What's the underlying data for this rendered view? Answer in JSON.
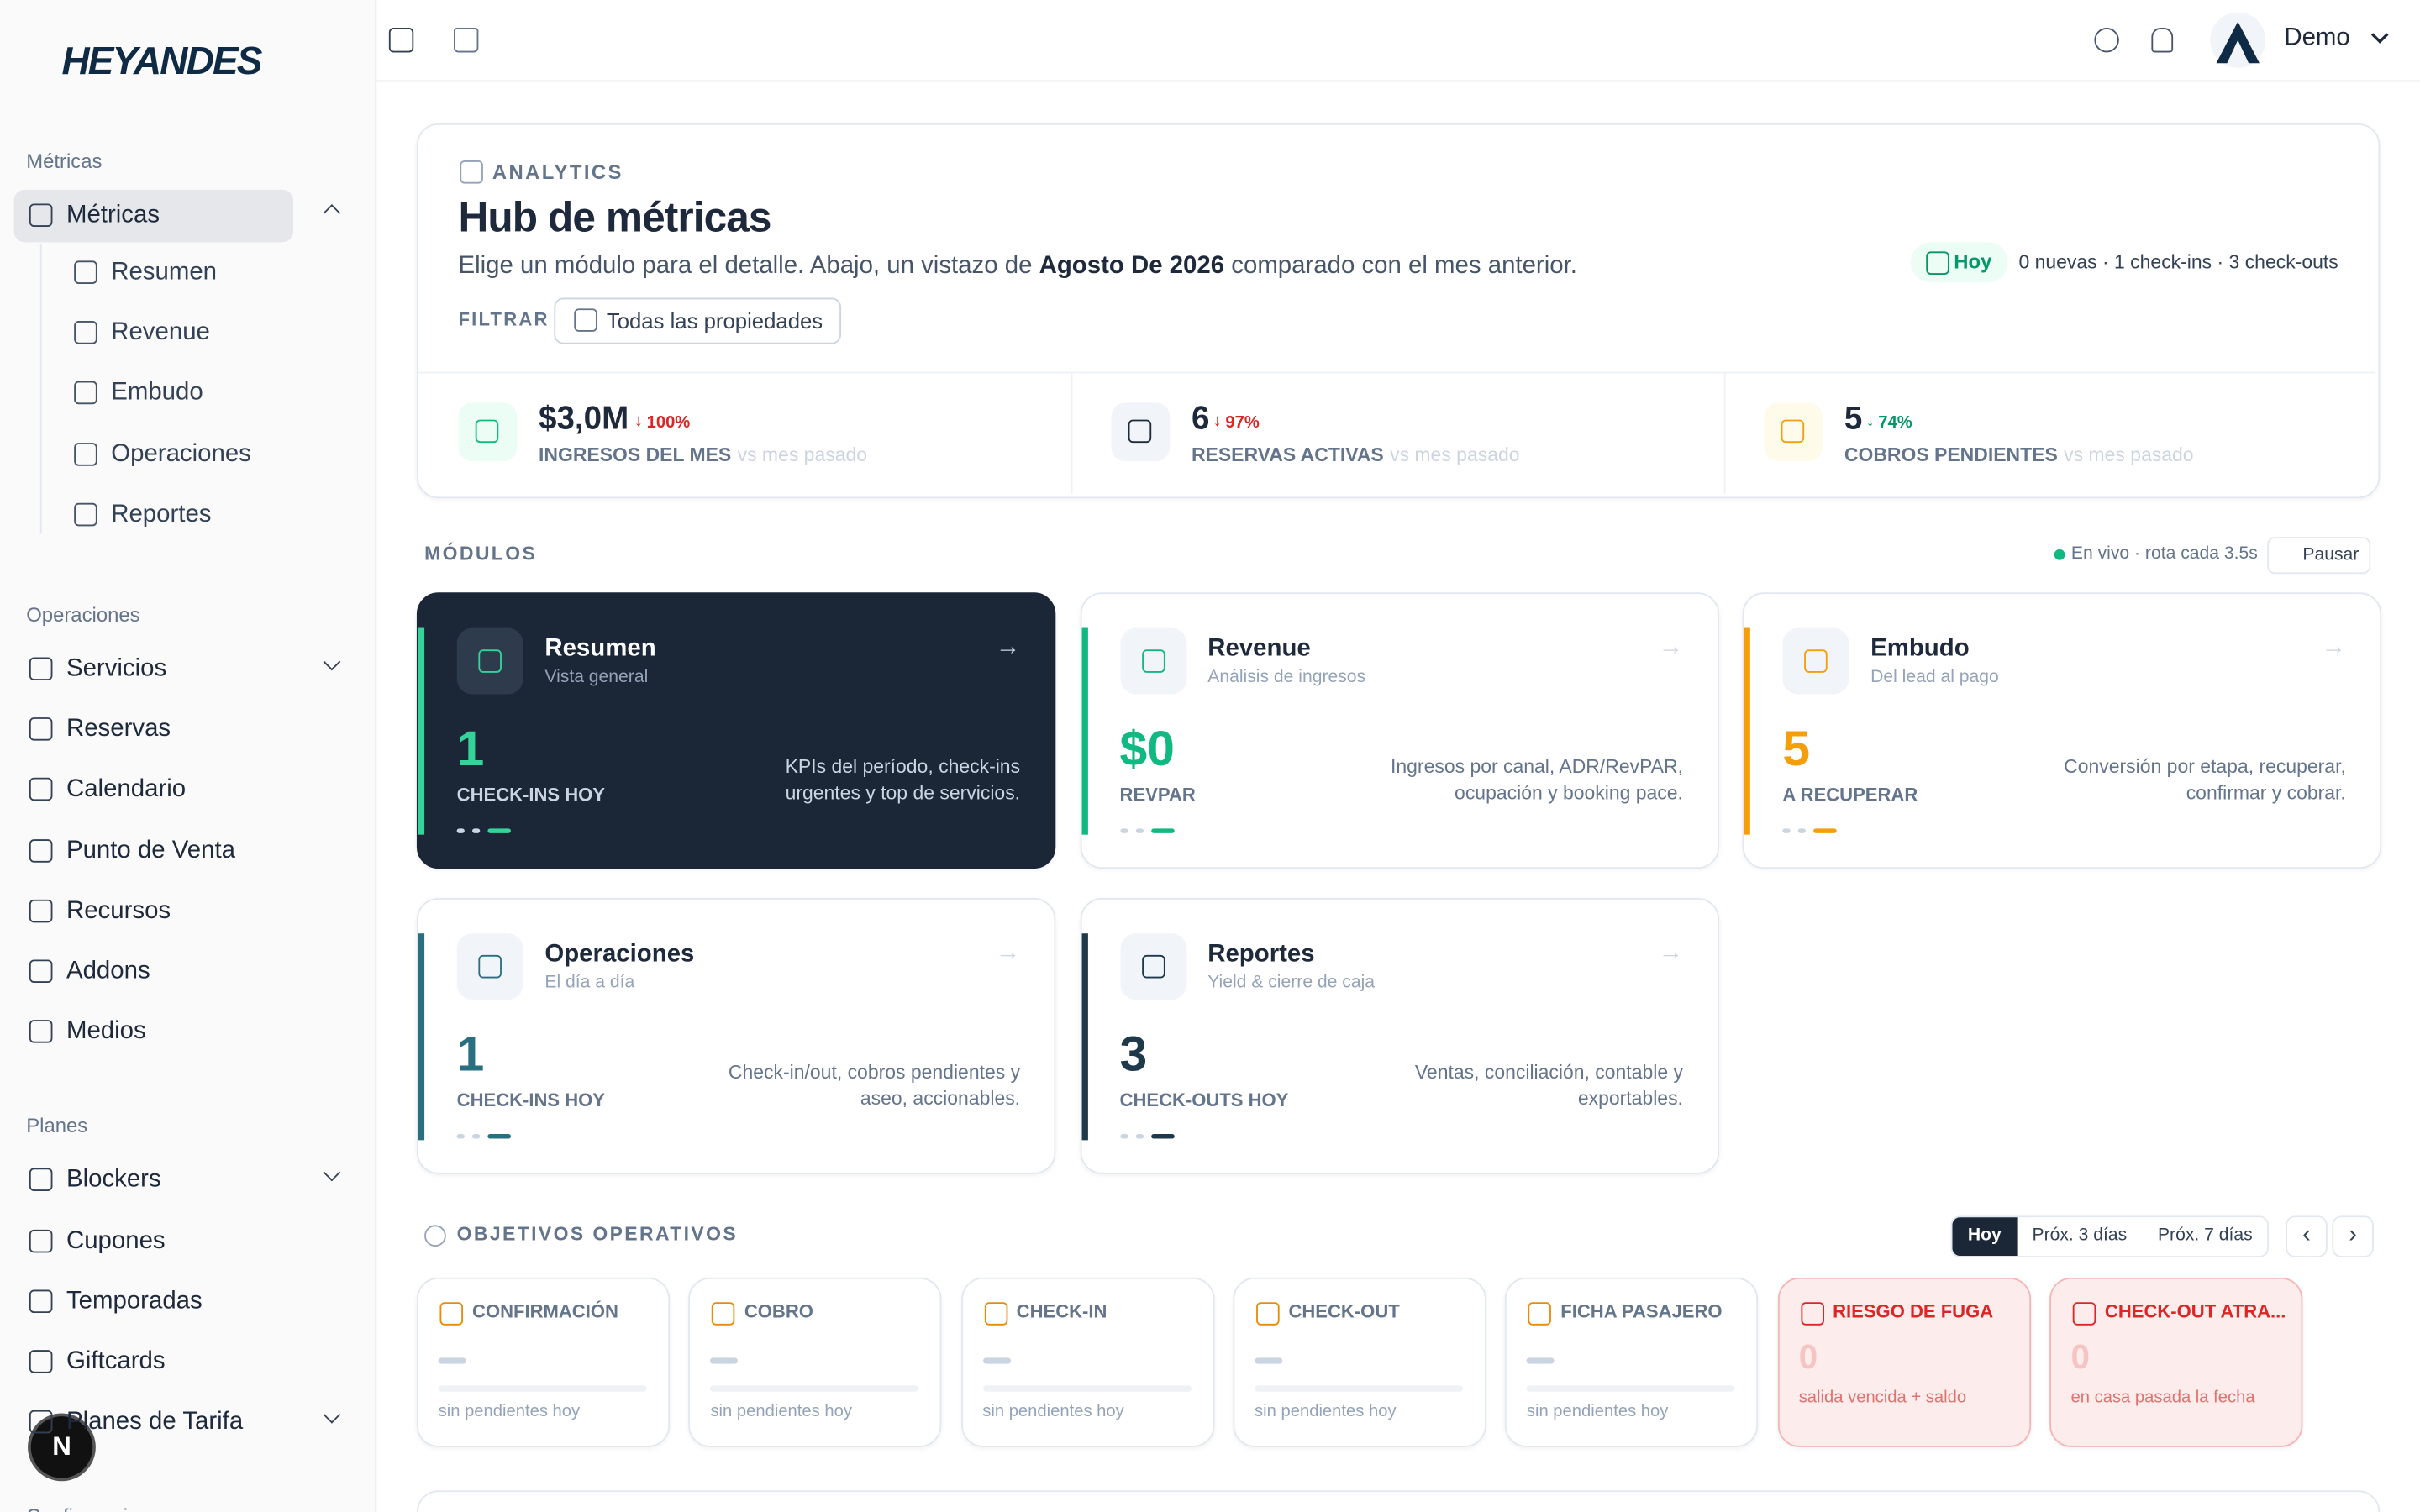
{
  "sidebar": {
    "logo": "HEYANDES",
    "sections": [
      {
        "title": "Métricas",
        "items": [
          {
            "label": "Métricas",
            "children": [
              "Resumen",
              "Revenue",
              "Embudo",
              "Operaciones",
              "Reportes"
            ]
          }
        ]
      },
      {
        "title": "Operaciones",
        "items": [
          {
            "label": "Servicios"
          },
          {
            "label": "Reservas"
          },
          {
            "label": "Calendario"
          },
          {
            "label": "Punto de Venta"
          },
          {
            "label": "Recursos"
          },
          {
            "label": "Addons"
          },
          {
            "label": "Medios"
          }
        ]
      },
      {
        "title": "Planes",
        "items": [
          {
            "label": "Blockers"
          },
          {
            "label": "Cupones"
          },
          {
            "label": "Temporadas"
          },
          {
            "label": "Giftcards"
          },
          {
            "label": "Planes de Tarifa"
          }
        ]
      },
      {
        "title": "Configuraciones",
        "items": []
      }
    ],
    "avatar": "N"
  },
  "topbar": {
    "user": "Demo"
  },
  "header": {
    "eyebrow": "ANALYTICS",
    "title": "Hub de métricas",
    "subtitle_before": "Elige un módulo para el detalle. Abajo, un vistazo de",
    "subtitle_period": "Agosto De 2026",
    "subtitle_after": "comparado con el mes anterior.",
    "filter_label": "FILTRAR",
    "filter_button": "Todas las propiedades",
    "today_badge": "Hoy",
    "today_summary": "0 nuevas · 1 check-ins · 3 check-outs"
  },
  "kpis": [
    {
      "value": "$3,0M",
      "delta": "100%",
      "delta_color": "#dc2626",
      "label": "INGRESOS DEL MES",
      "compare": "vs mes pasado",
      "accent": "#10b981",
      "bg": "#ecfdf5"
    },
    {
      "value": "6",
      "delta": "97%",
      "delta_color": "#dc2626",
      "label": "RESERVAS ACTIVAS",
      "compare": "vs mes pasado",
      "accent": "#1f2937",
      "bg": "#f1f5f9"
    },
    {
      "value": "5",
      "delta": "74%",
      "delta_color": "#059669",
      "label": "COBROS PENDIENTES",
      "compare": "vs mes pasado",
      "accent": "#f59e0b",
      "bg": "#fffbeb"
    }
  ],
  "modules": {
    "title": "MÓDULOS",
    "live": "En vivo · rota cada 3.5s",
    "pause": "Pausar",
    "cards": [
      {
        "title": "Resumen",
        "subtitle": "Vista general",
        "value": "1",
        "metric": "CHECK-INS HOY",
        "description": "KPIs del período, check-ins urgentes y top de servicios.",
        "accent": "#34d399",
        "dark": true
      },
      {
        "title": "Revenue",
        "subtitle": "Análisis de ingresos",
        "value": "$0",
        "metric": "REVPAR",
        "description": "Ingresos por canal, ADR/RevPAR, ocupación y booking pace.",
        "accent": "#10b981",
        "dark": false
      },
      {
        "title": "Embudo",
        "subtitle": "Del lead al pago",
        "value": "5",
        "metric": "A RECUPERAR",
        "description": "Conversión por etapa, recuperar, confirmar y cobrar.",
        "accent": "#f59e0b",
        "dark": false
      },
      {
        "title": "Operaciones",
        "subtitle": "El día a día",
        "value": "1",
        "metric": "CHECK-INS HOY",
        "description": "Check-in/out, cobros pendientes y aseo, accionables.",
        "accent": "#2a6f7f",
        "dark": false
      },
      {
        "title": "Reportes",
        "subtitle": "Yield & cierre de caja",
        "value": "3",
        "metric": "CHECK-OUTS HOY",
        "description": "Ventas, conciliación, contable y exportables.",
        "accent": "#1e3a4a",
        "dark": false
      }
    ]
  },
  "objectives": {
    "title": "OBJETIVOS OPERATIVOS",
    "tabs": [
      "Hoy",
      "Próx. 3 días",
      "Próx. 7 días"
    ],
    "cards": [
      {
        "label": "CONFIRMACIÓN",
        "note": "sin pendientes hoy",
        "alert": false
      },
      {
        "label": "COBRO",
        "note": "sin pendientes hoy",
        "alert": false
      },
      {
        "label": "CHECK-IN",
        "note": "sin pendientes hoy",
        "alert": false
      },
      {
        "label": "CHECK-OUT",
        "note": "sin pendientes hoy",
        "alert": false
      },
      {
        "label": "FICHA PASAJERO",
        "note": "sin pendientes hoy",
        "alert": false
      },
      {
        "label": "RIESGO DE FUGA",
        "value": "0",
        "note": "salida vencida + saldo",
        "alert": true
      },
      {
        "label": "CHECK-OUT ATRA...",
        "value": "0",
        "note": "en casa pasada la fecha",
        "alert": true
      }
    ]
  }
}
